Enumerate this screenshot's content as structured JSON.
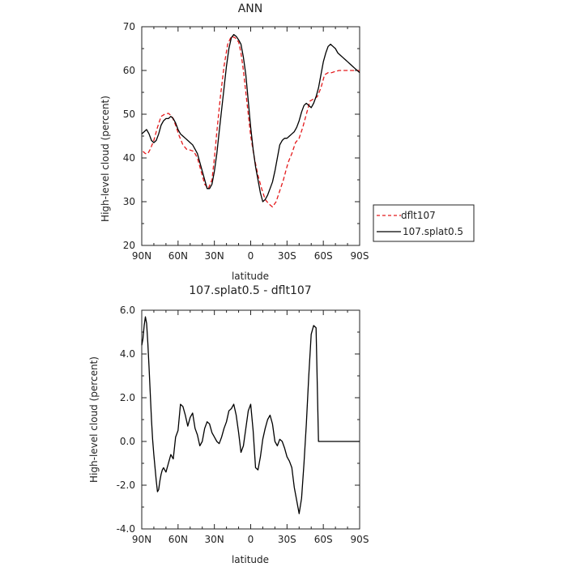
{
  "chart_data": [
    {
      "type": "line",
      "title": "ANN",
      "xlabel": "latitude",
      "ylabel": "High-level cloud (percent)",
      "xlim": [
        -90,
        90
      ],
      "ylim": [
        20,
        70
      ],
      "x_ticks": [
        {
          "value": -90,
          "label": "90N"
        },
        {
          "value": -60,
          "label": "60N"
        },
        {
          "value": -30,
          "label": "30N"
        },
        {
          "value": 0,
          "label": "0"
        },
        {
          "value": 30,
          "label": "30S"
        },
        {
          "value": 60,
          "label": "60S"
        },
        {
          "value": 90,
          "label": "90S"
        }
      ],
      "y_ticks": [
        {
          "value": 20,
          "label": "20"
        },
        {
          "value": 30,
          "label": "30"
        },
        {
          "value": 40,
          "label": "40"
        },
        {
          "value": 50,
          "label": "50"
        },
        {
          "value": 60,
          "label": "60"
        },
        {
          "value": 70,
          "label": "70"
        }
      ],
      "legend_position": "right",
      "series": [
        {
          "name": "dflt107",
          "color": "#e41a1c",
          "dash": "dashed",
          "x": [
            -89,
            -87,
            -85,
            -83,
            -80,
            -77,
            -74,
            -71,
            -68,
            -65,
            -62,
            -59,
            -56,
            -53,
            -50,
            -47,
            -44,
            -41,
            -38,
            -35,
            -32,
            -30,
            -28,
            -25,
            -22,
            -19,
            -16,
            -13,
            -10,
            -8,
            -6,
            -4,
            -2,
            0,
            3,
            6,
            9,
            12,
            15,
            18,
            21,
            24,
            27,
            29,
            31,
            34,
            37,
            40,
            43,
            46,
            49,
            52,
            55,
            58,
            61,
            64,
            67,
            70,
            73,
            76,
            79,
            82,
            85,
            88,
            90
          ],
          "y": [
            41.5,
            41,
            41,
            42,
            44,
            47,
            49.5,
            50,
            50.2,
            49.5,
            47.5,
            45,
            43,
            42,
            41.8,
            41.5,
            40,
            37,
            34,
            33,
            35,
            40,
            46,
            54,
            61,
            66,
            67.8,
            67.5,
            66.5,
            64,
            60,
            55,
            50,
            45,
            40,
            36,
            33,
            30.5,
            29.5,
            28.8,
            30,
            32.5,
            35,
            37,
            39,
            41,
            43.5,
            44.5,
            47,
            50,
            53,
            53.5,
            54,
            56,
            59,
            59.5,
            59.5,
            59.8,
            60,
            60,
            60,
            60,
            60,
            60,
            60
          ]
        },
        {
          "name": "107.splat0.5",
          "color": "#000000",
          "dash": "solid",
          "x": [
            -90,
            -88,
            -86,
            -84,
            -82,
            -80,
            -78,
            -76,
            -74,
            -72,
            -70,
            -68,
            -66,
            -64,
            -62,
            -60,
            -58,
            -56,
            -54,
            -52,
            -50,
            -48,
            -46,
            -44,
            -42,
            -40,
            -38,
            -36,
            -34,
            -32,
            -30,
            -28,
            -26,
            -24,
            -22,
            -20,
            -18,
            -16,
            -14,
            -12,
            -10,
            -8,
            -6,
            -4,
            -2,
            0,
            2,
            4,
            6,
            8,
            10,
            12,
            14,
            16,
            18,
            20,
            22,
            24,
            26,
            28,
            30,
            32,
            34,
            36,
            38,
            40,
            42,
            44,
            46,
            48,
            50,
            52,
            54,
            56,
            58,
            60,
            62,
            64,
            66,
            68,
            70,
            72,
            74,
            76,
            78,
            80,
            82,
            84,
            86,
            88,
            90
          ],
          "y": [
            45.5,
            46,
            46.5,
            45.5,
            44,
            43.5,
            44,
            45.5,
            47.5,
            48.5,
            49,
            49,
            49.5,
            49,
            48,
            46.5,
            45.5,
            45,
            44.5,
            44,
            43.5,
            43,
            42,
            41,
            39,
            37,
            35,
            33,
            33,
            34,
            37,
            41,
            46,
            51,
            56,
            61,
            65,
            67.5,
            68.2,
            67.8,
            67,
            66,
            63,
            59,
            53,
            47,
            42,
            38,
            35,
            32,
            30,
            30.5,
            31.5,
            33,
            34.5,
            37,
            40,
            43,
            44,
            44.5,
            44.5,
            45,
            45.5,
            46,
            47,
            48.5,
            50.5,
            52,
            52.5,
            52,
            51.5,
            52.5,
            54,
            56,
            59,
            62,
            64,
            65.5,
            66,
            65.5,
            65,
            64,
            63.5,
            63,
            62.5,
            62,
            61.5,
            61,
            60.5,
            60,
            59.5
          ]
        }
      ]
    },
    {
      "type": "line",
      "title": "107.splat0.5 - dflt107",
      "xlabel": "latitude",
      "ylabel": "High-level cloud (percent)",
      "xlim": [
        -90,
        90
      ],
      "ylim": [
        -4,
        6
      ],
      "x_ticks": [
        {
          "value": -90,
          "label": "90N"
        },
        {
          "value": -60,
          "label": "60N"
        },
        {
          "value": -30,
          "label": "30N"
        },
        {
          "value": 0,
          "label": "0"
        },
        {
          "value": 30,
          "label": "30S"
        },
        {
          "value": 60,
          "label": "60S"
        },
        {
          "value": 90,
          "label": "90S"
        }
      ],
      "y_ticks": [
        {
          "value": -4,
          "label": "-4.0"
        },
        {
          "value": -2,
          "label": "-2.0"
        },
        {
          "value": 0,
          "label": "0.0"
        },
        {
          "value": 2,
          "label": "2.0"
        },
        {
          "value": 4,
          "label": "4.0"
        },
        {
          "value": 6,
          "label": "6.0"
        }
      ],
      "series": [
        {
          "color": "#000000",
          "dash": "solid",
          "x": [
            -90,
            -89,
            -88,
            -87,
            -86,
            -85,
            -84,
            -83,
            -82,
            -81,
            -80,
            -79,
            -78,
            -77,
            -76,
            -75,
            -74,
            -73,
            -72,
            -70,
            -68,
            -66,
            -64,
            -62,
            -60,
            -58,
            -56,
            -54,
            -52,
            -50,
            -48,
            -46,
            -44,
            -42,
            -40,
            -38,
            -36,
            -34,
            -32,
            -30,
            -28,
            -26,
            -24,
            -22,
            -20,
            -18,
            -16,
            -14,
            -12,
            -10,
            -8,
            -6,
            -4,
            -2,
            0,
            2,
            4,
            6,
            8,
            10,
            12,
            14,
            16,
            18,
            20,
            22,
            24,
            26,
            28,
            30,
            32,
            34,
            36,
            38,
            40,
            42,
            44,
            46,
            48,
            50,
            52,
            54,
            56,
            58,
            60,
            62,
            64,
            66,
            68,
            70,
            72,
            74,
            76,
            78,
            80,
            82,
            84,
            86,
            88,
            89,
            90
          ],
          "y": [
            4.4,
            4.7,
            5.3,
            5.7,
            5.4,
            4.5,
            3.4,
            2.2,
            1.0,
            0.1,
            -0.6,
            -1.2,
            -1.8,
            -2.3,
            -2.2,
            -1.8,
            -1.5,
            -1.3,
            -1.2,
            -1.4,
            -1.0,
            -0.6,
            -0.8,
            0.2,
            0.5,
            1.7,
            1.6,
            1.2,
            0.7,
            1.1,
            1.3,
            0.6,
            0.3,
            -0.2,
            0.0,
            0.6,
            0.9,
            0.8,
            0.4,
            0.2,
            0.0,
            -0.1,
            0.2,
            0.6,
            0.9,
            1.4,
            1.5,
            1.7,
            1.2,
            0.4,
            -0.5,
            -0.2,
            0.6,
            1.4,
            1.7,
            0.5,
            -1.2,
            -1.3,
            -0.7,
            0.1,
            0.6,
            1.0,
            1.2,
            0.8,
            0.0,
            -0.2,
            0.1,
            0.0,
            -0.3,
            -0.7,
            -0.9,
            -1.2,
            -2.1,
            -2.7,
            -3.3,
            -2.6,
            -1.0,
            0.8,
            3.0,
            4.9,
            5.3,
            5.2,
            0,
            0,
            0,
            0,
            0,
            0,
            0,
            0,
            0,
            0,
            0,
            0,
            0,
            0,
            0,
            0,
            0,
            0,
            0
          ]
        }
      ]
    }
  ],
  "legend": {
    "items": [
      "dflt107",
      "107.splat0.5"
    ]
  }
}
